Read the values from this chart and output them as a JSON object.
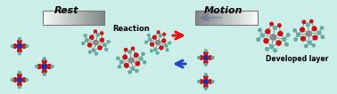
{
  "bg_color": "#cceee8",
  "title_rest": "Rest",
  "title_motion": "Motion",
  "label_reaction": "Reaction",
  "label_developed": "Developed layer",
  "arrow_right_color": "#dd1111",
  "arrow_left_color": "#2244cc",
  "blue_atom": "#1133bb",
  "red_atom": "#cc1111",
  "teal_atom": "#66aaa0",
  "gray_atom": "#888888",
  "bond_color": "#777777"
}
